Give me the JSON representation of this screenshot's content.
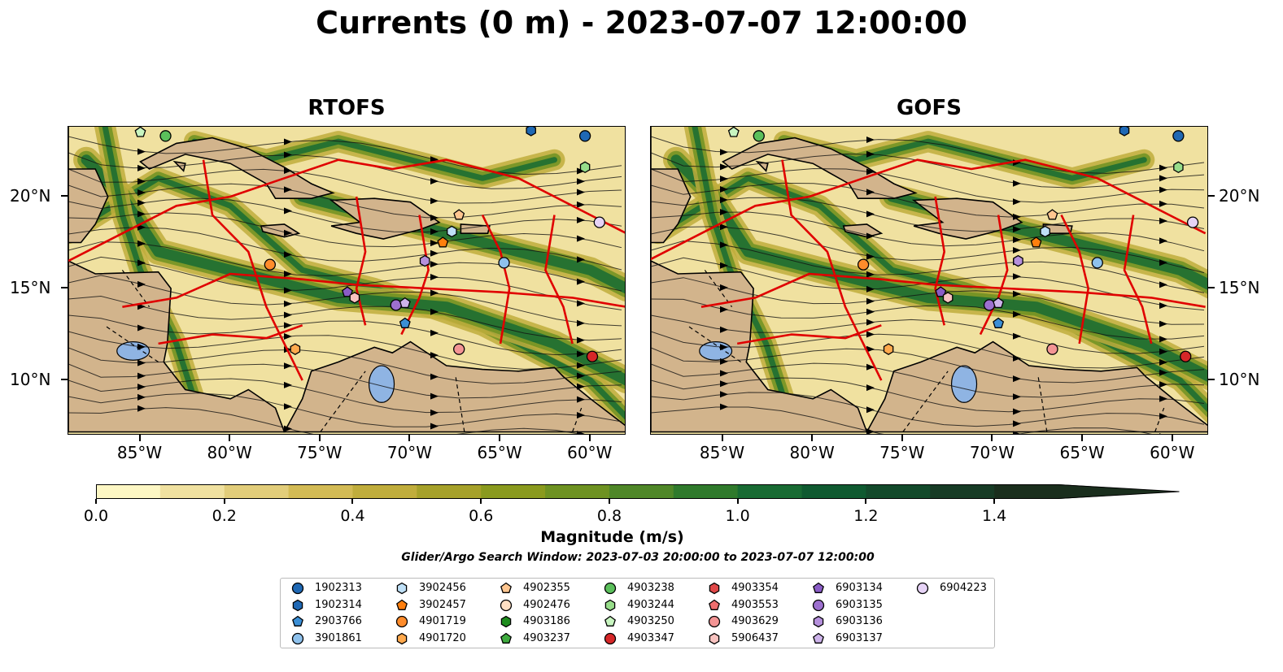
{
  "title": "Currents (0 m) - 2023-07-07 12:00:00",
  "panels": [
    {
      "title": "RTOFS"
    },
    {
      "title": "GOFS"
    }
  ],
  "x_ticks": [
    "85°W",
    "80°W",
    "75°W",
    "70°W",
    "65°W",
    "60°W"
  ],
  "y_ticks": [
    "20°N",
    "15°N",
    "10°N"
  ],
  "colorbar": {
    "ticks": [
      "0.0",
      "0.2",
      "0.4",
      "0.6",
      "0.8",
      "1.0",
      "1.2",
      "1.4"
    ],
    "label": "Magnitude (m/s)",
    "range": [
      0,
      1.5
    ],
    "extend": "max",
    "colors": [
      "#fdf7c4",
      "#f0e1a0",
      "#e2cd7a",
      "#d3bb55",
      "#c0ad3c",
      "#a6a12a",
      "#8a9a1e",
      "#6e9222",
      "#4f8728",
      "#2f7a2c",
      "#186b33",
      "#0f5a30",
      "#134a2b",
      "#173b25",
      "#1a2e1d"
    ]
  },
  "search_window": "Glider/Argo Search Window: 2023-07-03 20:00:00 to 2023-07-07 12:00:00",
  "legend": [
    {
      "label": "1902313",
      "marker": "circle",
      "color": "#1f68b4"
    },
    {
      "label": "1902314",
      "marker": "hexagon",
      "color": "#1f68b4"
    },
    {
      "label": "2903766",
      "marker": "pentagon",
      "color": "#3b8fd6"
    },
    {
      "label": "3901861",
      "marker": "circle",
      "color": "#8ec1ec"
    },
    {
      "label": "3902456",
      "marker": "hexagon",
      "color": "#bfe0f7"
    },
    {
      "label": "3902457",
      "marker": "pentagon",
      "color": "#ff7f0e"
    },
    {
      "label": "4901719",
      "marker": "circle",
      "color": "#ff8c2b"
    },
    {
      "label": "4901720",
      "marker": "hexagon",
      "color": "#ffa94d"
    },
    {
      "label": "4902355",
      "marker": "pentagon",
      "color": "#ffc690"
    },
    {
      "label": "4902476",
      "marker": "circle",
      "color": "#ffe0c4"
    },
    {
      "label": "4903186",
      "marker": "hexagon",
      "color": "#1e8c1e"
    },
    {
      "label": "4903237",
      "marker": "pentagon",
      "color": "#3fab3f"
    },
    {
      "label": "4903238",
      "marker": "circle",
      "color": "#5bbf5b"
    },
    {
      "label": "4903244",
      "marker": "hexagon",
      "color": "#97dd8a"
    },
    {
      "label": "4903250",
      "marker": "pentagon",
      "color": "#c8f5c0"
    },
    {
      "label": "4903347",
      "marker": "circle",
      "color": "#d62728"
    },
    {
      "label": "4903354",
      "marker": "hexagon",
      "color": "#e04848"
    },
    {
      "label": "4903553",
      "marker": "pentagon",
      "color": "#ee6e6e"
    },
    {
      "label": "4903629",
      "marker": "circle",
      "color": "#f39494"
    },
    {
      "label": "5906437",
      "marker": "hexagon",
      "color": "#f8c3c0"
    },
    {
      "label": "6903134",
      "marker": "pentagon",
      "color": "#8a5cc6"
    },
    {
      "label": "6903135",
      "marker": "circle",
      "color": "#9d70cf"
    },
    {
      "label": "6903136",
      "marker": "hexagon",
      "color": "#b590dc"
    },
    {
      "label": "6903137",
      "marker": "pentagon",
      "color": "#cdb3ea"
    },
    {
      "label": "6904223",
      "marker": "circle",
      "color": "#e6d3f6"
    }
  ]
}
